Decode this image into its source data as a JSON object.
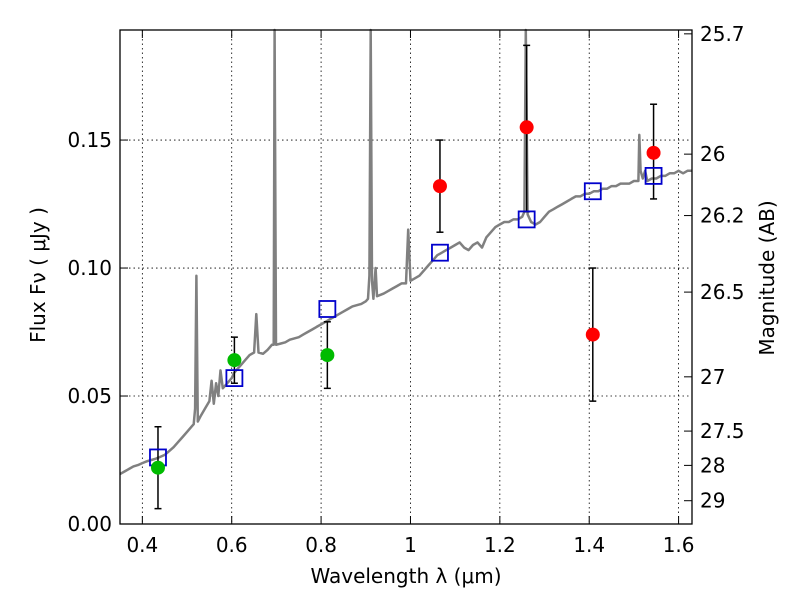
{
  "chart_data": {
    "type": "scatter",
    "xlabel": "Wavelength  λ (μm)",
    "ylabel": "Flux  Fν  ( μJy )",
    "y2label": "Magnitude (AB)",
    "xlim": [
      0.35,
      1.63
    ],
    "ylim": [
      0.0,
      0.193
    ],
    "grid": true,
    "x_ticks": [
      0.4,
      0.6,
      0.8,
      1.0,
      1.2,
      1.4,
      1.6
    ],
    "x_tick_labels": [
      "0.4",
      "0.6",
      "0.8",
      "1",
      "1.2",
      "1.4",
      "1.6"
    ],
    "y_ticks": [
      0.0,
      0.05,
      0.1,
      0.15
    ],
    "y_tick_labels": [
      "0.00",
      "0.05",
      "0.10",
      "0.15"
    ],
    "y2_ticks": [
      {
        "label": "25.7",
        "flux": 0.1915
      },
      {
        "label": "26",
        "flux": 0.1445
      },
      {
        "label": "26.2",
        "flux": 0.1205
      },
      {
        "label": "26.5",
        "flux": 0.0906
      },
      {
        "label": "27",
        "flux": 0.0575
      },
      {
        "label": "27.5",
        "flux": 0.0363
      },
      {
        "label": "28",
        "flux": 0.0229
      },
      {
        "label": "29",
        "flux": 0.0091
      }
    ],
    "colors": {
      "model": "#808080",
      "green_points": "#00bb00",
      "red_points": "#ff0000",
      "model_photometry": "#0000cc",
      "errorbar": "#000000",
      "grid": "#000000"
    },
    "series": [
      {
        "marker": "circle",
        "color": "#00bb00",
        "points": [
          {
            "x": 0.435,
            "y": 0.022,
            "ylow": 0.006,
            "yhigh": 0.038
          },
          {
            "x": 0.606,
            "y": 0.064,
            "ylow": 0.055,
            "yhigh": 0.073
          },
          {
            "x": 0.814,
            "y": 0.066,
            "ylow": 0.053,
            "yhigh": 0.079
          }
        ]
      },
      {
        "marker": "circle",
        "color": "#ff0000",
        "points": [
          {
            "x": 1.066,
            "y": 0.132,
            "ylow": 0.114,
            "yhigh": 0.15
          },
          {
            "x": 1.26,
            "y": 0.155,
            "ylow": 0.122,
            "yhigh": 0.187
          },
          {
            "x": 1.408,
            "y": 0.074,
            "ylow": 0.048,
            "yhigh": 0.1
          },
          {
            "x": 1.544,
            "y": 0.145,
            "ylow": 0.127,
            "yhigh": 0.164
          }
        ]
      },
      {
        "marker": "open-square",
        "color": "#0000cc",
        "points": [
          {
            "x": 0.435,
            "y": 0.026
          },
          {
            "x": 0.606,
            "y": 0.057
          },
          {
            "x": 0.814,
            "y": 0.084
          },
          {
            "x": 1.066,
            "y": 0.106
          },
          {
            "x": 1.26,
            "y": 0.119
          },
          {
            "x": 1.408,
            "y": 0.13
          },
          {
            "x": 1.544,
            "y": 0.136
          }
        ]
      },
      {
        "marker": "line",
        "color": "#808080",
        "points": [
          [
            0.35,
            0.0195
          ],
          [
            0.36,
            0.0205
          ],
          [
            0.37,
            0.0215
          ],
          [
            0.38,
            0.0225
          ],
          [
            0.39,
            0.023
          ],
          [
            0.4,
            0.0238
          ],
          [
            0.41,
            0.0245
          ],
          [
            0.42,
            0.025
          ],
          [
            0.43,
            0.0255
          ],
          [
            0.44,
            0.0262
          ],
          [
            0.45,
            0.027
          ],
          [
            0.46,
            0.0285
          ],
          [
            0.47,
            0.03
          ],
          [
            0.48,
            0.032
          ],
          [
            0.49,
            0.034
          ],
          [
            0.5,
            0.036
          ],
          [
            0.51,
            0.038
          ],
          [
            0.515,
            0.039
          ],
          [
            0.518,
            0.045
          ],
          [
            0.521,
            0.097
          ],
          [
            0.524,
            0.04
          ],
          [
            0.53,
            0.042
          ],
          [
            0.54,
            0.045
          ],
          [
            0.55,
            0.048
          ],
          [
            0.555,
            0.056
          ],
          [
            0.56,
            0.047
          ],
          [
            0.565,
            0.055
          ],
          [
            0.57,
            0.05
          ],
          [
            0.575,
            0.06
          ],
          [
            0.58,
            0.053
          ],
          [
            0.59,
            0.055
          ],
          [
            0.6,
            0.057
          ],
          [
            0.605,
            0.059
          ],
          [
            0.61,
            0.06
          ],
          [
            0.62,
            0.062
          ],
          [
            0.63,
            0.064
          ],
          [
            0.64,
            0.066
          ],
          [
            0.65,
            0.067
          ],
          [
            0.655,
            0.082
          ],
          [
            0.66,
            0.067
          ],
          [
            0.67,
            0.0665
          ],
          [
            0.68,
            0.068
          ],
          [
            0.69,
            0.07
          ],
          [
            0.694,
            0.07
          ],
          [
            0.696,
            0.193
          ],
          [
            0.699,
            0.07
          ],
          [
            0.71,
            0.0705
          ],
          [
            0.72,
            0.071
          ],
          [
            0.73,
            0.072
          ],
          [
            0.74,
            0.0725
          ],
          [
            0.75,
            0.073
          ],
          [
            0.76,
            0.074
          ],
          [
            0.77,
            0.075
          ],
          [
            0.78,
            0.076
          ],
          [
            0.79,
            0.077
          ],
          [
            0.8,
            0.078
          ],
          [
            0.81,
            0.079
          ],
          [
            0.82,
            0.08
          ],
          [
            0.83,
            0.081
          ],
          [
            0.84,
            0.082
          ],
          [
            0.85,
            0.083
          ],
          [
            0.86,
            0.084
          ],
          [
            0.87,
            0.085
          ],
          [
            0.88,
            0.0855
          ],
          [
            0.89,
            0.086
          ],
          [
            0.9,
            0.087
          ],
          [
            0.905,
            0.088
          ],
          [
            0.908,
            0.097
          ],
          [
            0.911,
            0.193
          ],
          [
            0.914,
            0.095
          ],
          [
            0.917,
            0.088
          ],
          [
            0.922,
            0.1
          ],
          [
            0.925,
            0.089
          ],
          [
            0.94,
            0.09
          ],
          [
            0.95,
            0.091
          ],
          [
            0.96,
            0.092
          ],
          [
            0.97,
            0.093
          ],
          [
            0.98,
            0.094
          ],
          [
            0.99,
            0.094
          ],
          [
            0.995,
            0.115
          ],
          [
            1.0,
            0.095
          ],
          [
            1.01,
            0.096
          ],
          [
            1.02,
            0.097
          ],
          [
            1.03,
            0.099
          ],
          [
            1.04,
            0.101
          ],
          [
            1.05,
            0.103
          ],
          [
            1.06,
            0.105
          ],
          [
            1.07,
            0.106
          ],
          [
            1.08,
            0.107
          ],
          [
            1.09,
            0.108
          ],
          [
            1.1,
            0.109
          ],
          [
            1.11,
            0.11
          ],
          [
            1.12,
            0.108
          ],
          [
            1.13,
            0.107
          ],
          [
            1.14,
            0.109
          ],
          [
            1.15,
            0.11
          ],
          [
            1.16,
            0.108
          ],
          [
            1.17,
            0.112
          ],
          [
            1.18,
            0.114
          ],
          [
            1.19,
            0.116
          ],
          [
            1.2,
            0.117
          ],
          [
            1.21,
            0.118
          ],
          [
            1.22,
            0.118
          ],
          [
            1.23,
            0.119
          ],
          [
            1.24,
            0.119
          ],
          [
            1.25,
            0.12
          ],
          [
            1.255,
            0.122
          ],
          [
            1.258,
            0.193
          ],
          [
            1.262,
            0.121
          ],
          [
            1.27,
            0.118
          ],
          [
            1.28,
            0.117
          ],
          [
            1.29,
            0.118
          ],
          [
            1.3,
            0.12
          ],
          [
            1.31,
            0.122
          ],
          [
            1.32,
            0.123
          ],
          [
            1.33,
            0.124
          ],
          [
            1.34,
            0.125
          ],
          [
            1.35,
            0.126
          ],
          [
            1.36,
            0.127
          ],
          [
            1.37,
            0.128
          ],
          [
            1.38,
            0.128
          ],
          [
            1.39,
            0.129
          ],
          [
            1.4,
            0.129
          ],
          [
            1.41,
            0.13
          ],
          [
            1.42,
            0.13
          ],
          [
            1.43,
            0.131
          ],
          [
            1.44,
            0.131
          ],
          [
            1.45,
            0.132
          ],
          [
            1.46,
            0.132
          ],
          [
            1.47,
            0.133
          ],
          [
            1.48,
            0.133
          ],
          [
            1.49,
            0.133
          ],
          [
            1.5,
            0.134
          ],
          [
            1.51,
            0.134
          ],
          [
            1.512,
            0.152
          ],
          [
            1.515,
            0.138
          ],
          [
            1.52,
            0.135
          ],
          [
            1.525,
            0.138
          ],
          [
            1.53,
            0.134
          ],
          [
            1.54,
            0.135
          ],
          [
            1.55,
            0.135
          ],
          [
            1.56,
            0.136
          ],
          [
            1.57,
            0.136
          ],
          [
            1.58,
            0.137
          ],
          [
            1.59,
            0.137
          ],
          [
            1.6,
            0.138
          ],
          [
            1.61,
            0.137
          ],
          [
            1.62,
            0.138
          ],
          [
            1.63,
            0.138
          ]
        ]
      }
    ]
  }
}
